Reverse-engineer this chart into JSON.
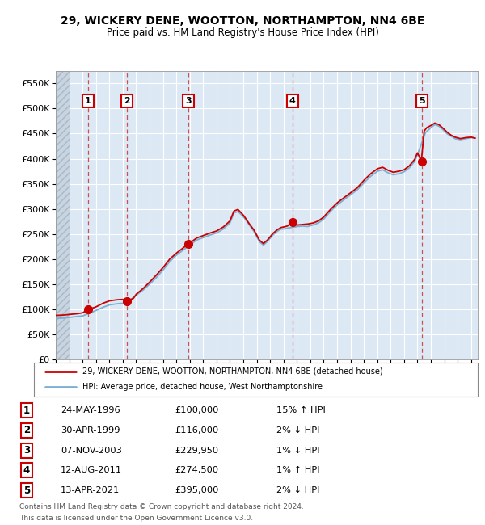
{
  "title_line1": "29, WICKERY DENE, WOOTTON, NORTHAMPTON, NN4 6BE",
  "title_line2": "Price paid vs. HM Land Registry's House Price Index (HPI)",
  "plot_bg_color": "#dce9f5",
  "grid_color": "#ffffff",
  "hpi_label": "HPI: Average price, detached house, West Northamptonshire",
  "price_label": "29, WICKERY DENE, WOOTTON, NORTHAMPTON, NN4 6BE (detached house)",
  "footer_line1": "Contains HM Land Registry data © Crown copyright and database right 2024.",
  "footer_line2": "This data is licensed under the Open Government Licence v3.0.",
  "table_data": [
    [
      "1",
      "24-MAY-1996",
      "£100,000",
      "15% ↑ HPI"
    ],
    [
      "2",
      "30-APR-1999",
      "£116,000",
      "2% ↓ HPI"
    ],
    [
      "3",
      "07-NOV-2003",
      "£229,950",
      "1% ↓ HPI"
    ],
    [
      "4",
      "12-AUG-2011",
      "£274,500",
      "1% ↑ HPI"
    ],
    [
      "5",
      "13-APR-2021",
      "£395,000",
      "2% ↓ HPI"
    ]
  ],
  "sale_prices": [
    100000,
    116000,
    229950,
    274500,
    395000
  ],
  "sale_labels": [
    "1",
    "2",
    "3",
    "4",
    "5"
  ],
  "ylim": [
    0,
    575000
  ],
  "yticks": [
    0,
    50000,
    100000,
    150000,
    200000,
    250000,
    300000,
    350000,
    400000,
    450000,
    500000,
    550000
  ],
  "xlim_start": 1994.0,
  "xlim_end": 2025.5,
  "red_line_color": "#cc0000",
  "blue_line_color": "#7bafd4",
  "marker_color": "#cc0000",
  "hatch_end": 1995.0
}
